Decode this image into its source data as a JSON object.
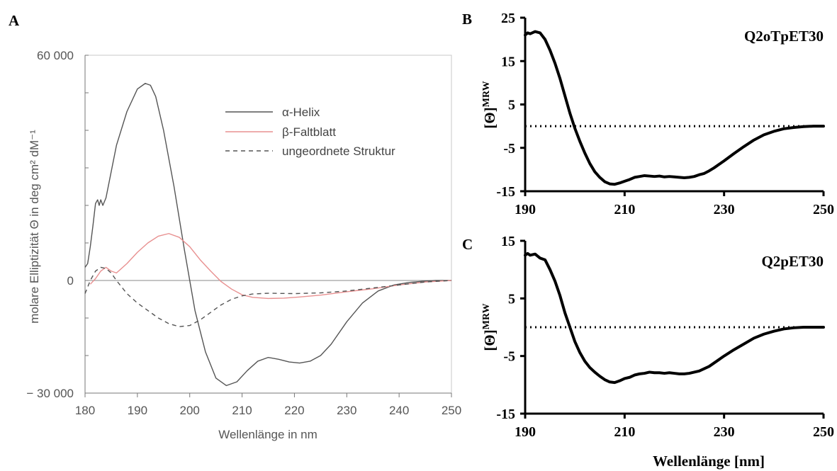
{
  "chart_data": [
    {
      "panel": "A",
      "type": "line",
      "xlabel": "Wellenlänge in nm",
      "ylabel": "molare Elliptizität Θ in deg cm² dM⁻¹",
      "xlim": [
        180,
        250
      ],
      "ylim": [
        -30000,
        60000
      ],
      "xticks": [
        180,
        190,
        200,
        210,
        220,
        230,
        240,
        250
      ],
      "yticks": [
        {
          "value": 60000,
          "label": "60 000"
        },
        {
          "value": 0,
          "label": "0"
        },
        {
          "value": -30000,
          "label": "− 30 000"
        }
      ],
      "legend_position": "top-right",
      "series": [
        {
          "name": "α-Helix",
          "color": "#555555",
          "dash": "solid",
          "x": [
            180,
            180.5,
            181,
            181.5,
            182,
            182.4,
            182.7,
            183,
            183.4,
            184,
            186,
            188,
            190,
            191.5,
            192.5,
            193.5,
            195,
            197,
            199,
            201,
            203,
            205,
            207,
            209,
            211,
            213,
            215,
            217,
            219,
            221,
            223,
            225,
            227,
            230,
            233,
            236,
            239,
            242,
            245,
            247,
            249,
            250
          ],
          "y": [
            3500,
            4500,
            9000,
            14500,
            20500,
            21500,
            20000,
            21500,
            20000,
            22000,
            36000,
            45000,
            51000,
            52500,
            52000,
            49000,
            40000,
            25000,
            8000,
            -8000,
            -19000,
            -26000,
            -28000,
            -27000,
            -24000,
            -21500,
            -20500,
            -21000,
            -21700,
            -22000,
            -21500,
            -20000,
            -17000,
            -11000,
            -6000,
            -2800,
            -1200,
            -500,
            -150,
            0,
            0,
            0
          ]
        },
        {
          "name": "β-Faltblatt",
          "color": "#e89090",
          "dash": "solid",
          "x": [
            181,
            182,
            183,
            184,
            185,
            186,
            188,
            190,
            192,
            194,
            196,
            198,
            200,
            202,
            204,
            206,
            208,
            210,
            212,
            215,
            218,
            221,
            225,
            230,
            235,
            240,
            245,
            250
          ],
          "y": [
            -1000,
            500,
            2500,
            3500,
            2500,
            2000,
            4500,
            7500,
            10000,
            11800,
            12500,
            11500,
            9000,
            5500,
            2500,
            -300,
            -2300,
            -3800,
            -4500,
            -4800,
            -4700,
            -4400,
            -3900,
            -3000,
            -2200,
            -1200,
            -400,
            0
          ]
        },
        {
          "name": "ungeordnete Struktur",
          "color": "#555555",
          "dash": "dashed",
          "x": [
            180,
            181,
            182,
            183,
            184,
            185,
            186,
            188,
            190,
            192,
            194,
            196,
            198,
            200,
            202,
            204,
            206,
            208,
            210,
            212,
            215,
            220,
            225,
            230,
            235,
            240,
            245,
            250
          ],
          "y": [
            -3500,
            0,
            2500,
            3500,
            3200,
            2000,
            0,
            -3500,
            -6000,
            -8000,
            -10000,
            -11500,
            -12300,
            -12000,
            -10500,
            -8500,
            -6500,
            -5000,
            -4100,
            -3600,
            -3400,
            -3500,
            -3300,
            -2800,
            -2000,
            -1200,
            -400,
            0
          ]
        }
      ]
    },
    {
      "panel": "B",
      "type": "line",
      "title": "Q2oTpET30",
      "xlabel": "",
      "ylabel": "[Θ]MRW",
      "ylabel_main": "[Θ]",
      "ylabel_sup": "MRW",
      "xlim": [
        190,
        250
      ],
      "ylim": [
        -15,
        25
      ],
      "xticks": [
        190,
        210,
        230,
        250
      ],
      "yticks": [
        25,
        15,
        5,
        -5,
        -15
      ],
      "reference_line": {
        "y": 0,
        "style": "dotted"
      },
      "series": [
        {
          "color": "#000000",
          "x": [
            190,
            190.5,
            191,
            192,
            193,
            194,
            195,
            196,
            197,
            198,
            199,
            200,
            201,
            202,
            203,
            204,
            205,
            206,
            207,
            208,
            209,
            210,
            211,
            212,
            213,
            214,
            215,
            216,
            217,
            218,
            219,
            220,
            221,
            222,
            223,
            224,
            225,
            226,
            227,
            228,
            229,
            230,
            232,
            234,
            236,
            238,
            240,
            242,
            244,
            246,
            248,
            250
          ],
          "y": [
            21,
            21.5,
            21.3,
            21.8,
            21.5,
            20,
            17.5,
            14.5,
            11,
            7,
            3,
            -0.5,
            -3.5,
            -6.2,
            -8.6,
            -10.5,
            -11.8,
            -12.8,
            -13.3,
            -13.4,
            -13.1,
            -12.7,
            -12.3,
            -11.8,
            -11.6,
            -11.4,
            -11.5,
            -11.6,
            -11.5,
            -11.7,
            -11.6,
            -11.7,
            -11.8,
            -11.9,
            -11.8,
            -11.6,
            -11.2,
            -10.9,
            -10.3,
            -9.6,
            -8.8,
            -8.0,
            -6.3,
            -4.7,
            -3.2,
            -2.0,
            -1.2,
            -0.6,
            -0.3,
            -0.1,
            0,
            0
          ]
        }
      ]
    },
    {
      "panel": "C",
      "type": "line",
      "title": "Q2pET30",
      "xlabel": "Wellenlänge [nm]",
      "ylabel": "[Θ]MRW",
      "ylabel_main": "[Θ]",
      "ylabel_sup": "MRW",
      "xlim": [
        190,
        250
      ],
      "ylim": [
        -15,
        15
      ],
      "xticks": [
        190,
        210,
        230,
        250
      ],
      "yticks": [
        15,
        5,
        -5,
        -15
      ],
      "reference_line": {
        "y": 0,
        "style": "dotted"
      },
      "series": [
        {
          "color": "#000000",
          "x": [
            190,
            190.5,
            191,
            192,
            193,
            194,
            195,
            196,
            197,
            198,
            199,
            200,
            201,
            202,
            203,
            204,
            205,
            206,
            207,
            208,
            209,
            210,
            211,
            212,
            213,
            214,
            215,
            216,
            217,
            218,
            219,
            220,
            221,
            222,
            223,
            224,
            225,
            226,
            227,
            228,
            229,
            230,
            232,
            234,
            236,
            238,
            240,
            242,
            244,
            246,
            248,
            250
          ],
          "y": [
            12.5,
            12.8,
            12.5,
            12.7,
            12.0,
            11.7,
            10,
            8,
            5.5,
            2.5,
            0,
            -2.5,
            -4.4,
            -5.9,
            -7,
            -7.8,
            -8.5,
            -9.1,
            -9.5,
            -9.6,
            -9.3,
            -8.9,
            -8.7,
            -8.3,
            -8.1,
            -8.0,
            -7.8,
            -7.9,
            -7.9,
            -8.0,
            -7.9,
            -8.0,
            -8.1,
            -8.1,
            -8.0,
            -7.8,
            -7.6,
            -7.2,
            -6.8,
            -6.2,
            -5.6,
            -5.0,
            -3.9,
            -2.9,
            -1.9,
            -1.2,
            -0.7,
            -0.3,
            -0.1,
            0,
            0,
            0
          ]
        }
      ]
    }
  ]
}
